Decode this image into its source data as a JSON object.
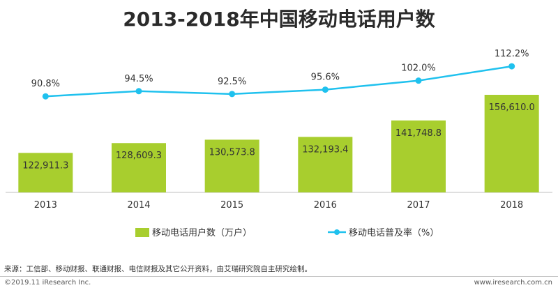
{
  "chart_data": {
    "type": "bar",
    "title": "2013-2018年中国移动电话用户数",
    "categories": [
      "2013",
      "2014",
      "2015",
      "2016",
      "2017",
      "2018"
    ],
    "series": [
      {
        "name": "移动电话用户数（万户）",
        "type": "bar",
        "values": [
          122911.3,
          128609.3,
          130573.8,
          132193.4,
          141748.8,
          156610.0
        ],
        "labels": [
          "122,911.3",
          "128,609.3",
          "130,573.8",
          "132,193.4",
          "141,748.8",
          "156,610.0"
        ],
        "color": "#A8CE2E"
      },
      {
        "name": "移动电话普及率（%）",
        "type": "line",
        "values": [
          90.8,
          94.5,
          92.5,
          95.6,
          102.0,
          112.2
        ],
        "labels": [
          "90.8%",
          "94.5%",
          "92.5%",
          "95.6%",
          "102.0%",
          "112.2%"
        ],
        "color": "#1FC1EE"
      }
    ],
    "legend_position": "bottom",
    "grid": false
  },
  "footer": {
    "source": "来源：工信部、移动财报、联通财报、电信财报及其它公开资料，由艾瑞研究院自主研究绘制。",
    "copyright": "©2019.11 iResearch Inc.",
    "website": "www.iresearch.com.cn"
  }
}
